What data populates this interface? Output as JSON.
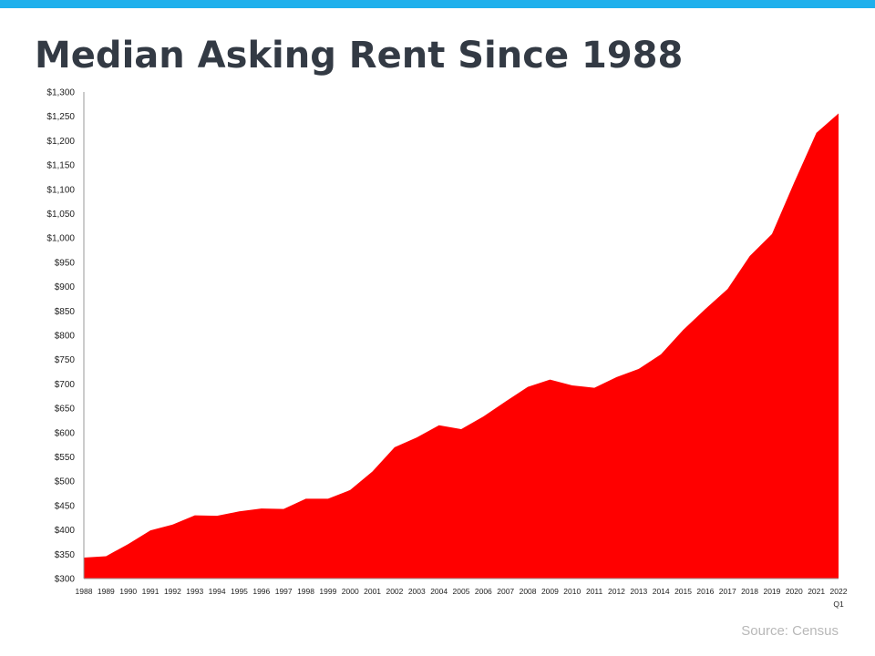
{
  "colors": {
    "accent_bar": "#1fb0ec",
    "area_fill": "#ff0000",
    "title": "#333a44",
    "source": "#b8b8b8"
  },
  "title": "Median Asking Rent Since 1988",
  "source": "Source: Census",
  "chart_data": {
    "type": "area",
    "title": "Median Asking Rent Since 1988",
    "xlabel": "",
    "ylabel": "",
    "ylim": [
      300,
      1300
    ],
    "grid": false,
    "legend": "none",
    "y_ticks": [
      "$300",
      "$350",
      "$400",
      "$450",
      "$500",
      "$550",
      "$600",
      "$650",
      "$700",
      "$750",
      "$800",
      "$850",
      "$900",
      "$950",
      "$1,000",
      "$1,050",
      "$1,100",
      "$1,150",
      "$1,200",
      "$1,250",
      "$1,300"
    ],
    "categories": [
      "1988",
      "1989",
      "1990",
      "1991",
      "1992",
      "1993",
      "1994",
      "1995",
      "1996",
      "1997",
      "1998",
      "1999",
      "2000",
      "2001",
      "2002",
      "2003",
      "2004",
      "2005",
      "2006",
      "2007",
      "2008",
      "2009",
      "2010",
      "2011",
      "2012",
      "2013",
      "2014",
      "2015",
      "2016",
      "2017",
      "2018",
      "2019",
      "2020",
      "2021",
      "2022 Q1"
    ],
    "values": [
      343,
      346,
      371,
      399,
      411,
      430,
      429,
      438,
      444,
      443,
      464,
      464,
      482,
      520,
      570,
      590,
      615,
      607,
      633,
      664,
      694,
      709,
      697,
      692,
      714,
      731,
      761,
      811,
      854,
      895,
      963,
      1008,
      1114,
      1216,
      1256
    ]
  }
}
